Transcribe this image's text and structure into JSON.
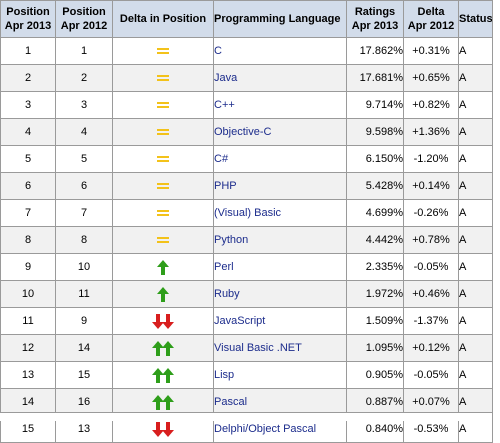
{
  "table": {
    "headers": {
      "pos2013": [
        "Position",
        "Apr 2013"
      ],
      "pos2012": [
        "Position",
        "Apr 2012"
      ],
      "delta_pos": "Delta in Position",
      "language": "Programming Language",
      "ratings": [
        "Ratings",
        "Apr 2013"
      ],
      "delta_rating": [
        "Delta",
        "Apr 2012"
      ],
      "status": "Status"
    },
    "rows": [
      {
        "pos2013": "1",
        "pos2012": "1",
        "change": "same",
        "language": "C",
        "rating": "17.862%",
        "delta": "+0.31%",
        "status": "A"
      },
      {
        "pos2013": "2",
        "pos2012": "2",
        "change": "same",
        "language": "Java",
        "rating": "17.681%",
        "delta": "+0.65%",
        "status": "A"
      },
      {
        "pos2013": "3",
        "pos2012": "3",
        "change": "same",
        "language": "C++",
        "rating": "9.714%",
        "delta": "+0.82%",
        "status": "A"
      },
      {
        "pos2013": "4",
        "pos2012": "4",
        "change": "same",
        "language": "Objective-C",
        "rating": "9.598%",
        "delta": "+1.36%",
        "status": "A"
      },
      {
        "pos2013": "5",
        "pos2012": "5",
        "change": "same",
        "language": "C#",
        "rating": "6.150%",
        "delta": "-1.20%",
        "status": "A"
      },
      {
        "pos2013": "6",
        "pos2012": "6",
        "change": "same",
        "language": "PHP",
        "rating": "5.428%",
        "delta": "+0.14%",
        "status": "A"
      },
      {
        "pos2013": "7",
        "pos2012": "7",
        "change": "same",
        "language": "(Visual) Basic",
        "rating": "4.699%",
        "delta": "-0.26%",
        "status": "A"
      },
      {
        "pos2013": "8",
        "pos2012": "8",
        "change": "same",
        "language": "Python",
        "rating": "4.442%",
        "delta": "+0.78%",
        "status": "A"
      },
      {
        "pos2013": "9",
        "pos2012": "10",
        "change": "up1",
        "language": "Perl",
        "rating": "2.335%",
        "delta": "-0.05%",
        "status": "A"
      },
      {
        "pos2013": "10",
        "pos2012": "11",
        "change": "up1",
        "language": "Ruby",
        "rating": "1.972%",
        "delta": "+0.46%",
        "status": "A"
      },
      {
        "pos2013": "11",
        "pos2012": "9",
        "change": "down2",
        "language": "JavaScript",
        "rating": "1.509%",
        "delta": "-1.37%",
        "status": "A"
      },
      {
        "pos2013": "12",
        "pos2012": "14",
        "change": "up2",
        "language": "Visual Basic .NET",
        "rating": "1.095%",
        "delta": "+0.12%",
        "status": "A"
      },
      {
        "pos2013": "13",
        "pos2012": "15",
        "change": "up2",
        "language": "Lisp",
        "rating": "0.905%",
        "delta": "-0.05%",
        "status": "A"
      },
      {
        "pos2013": "14",
        "pos2012": "16",
        "change": "up2",
        "language": "Pascal",
        "rating": "0.887%",
        "delta": "+0.07%",
        "status": "A"
      },
      {
        "pos2013": "15",
        "pos2012": "13",
        "change": "down2",
        "language": "Delphi/Object Pascal",
        "rating": "0.840%",
        "delta": "-0.53%",
        "status": "A"
      }
    ]
  },
  "icons": {
    "same": "equals-icon",
    "up": "up-arrow-icon",
    "down": "down-arrow-icon"
  },
  "colors": {
    "header_bg": "#d2dcea",
    "border": "#9a9a9a",
    "equals": "#f3c21a",
    "up_arrow": "#2e9e1a",
    "down_arrow": "#d81e1e",
    "language_text": "#1c2c8c",
    "alt_row": "#f1f1f1"
  }
}
